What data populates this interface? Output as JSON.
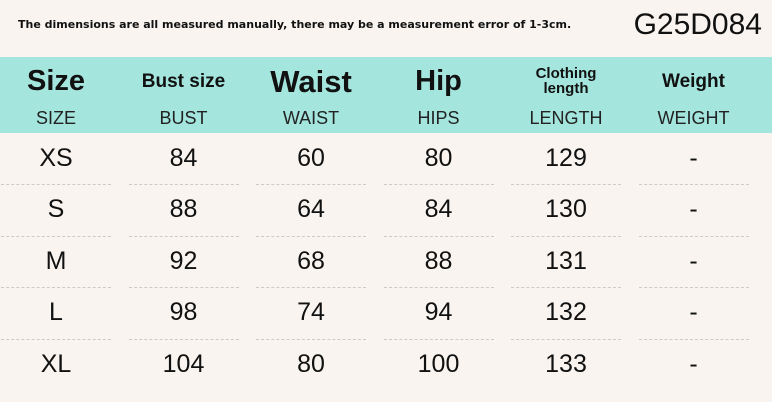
{
  "header": {
    "note": "The dimensions are all measured manually, there may be a measurement error of 1-3cm.",
    "code": "G25D084"
  },
  "table": {
    "columns": [
      {
        "title": "Size",
        "subtitle": "SIZE"
      },
      {
        "title": "Bust size",
        "subtitle": "BUST"
      },
      {
        "title": "Waist",
        "subtitle": "WAIST"
      },
      {
        "title": "Hip",
        "subtitle": "HIPS"
      },
      {
        "title": "Clothing length",
        "subtitle": "LENGTH"
      },
      {
        "title": "Weight",
        "subtitle": "WEIGHT"
      }
    ],
    "rows": [
      [
        "XS",
        84,
        60,
        80,
        129,
        "-"
      ],
      [
        "S",
        88,
        64,
        84,
        130,
        "-"
      ],
      [
        "M",
        92,
        68,
        88,
        131,
        "-"
      ],
      [
        "L",
        98,
        74,
        94,
        132,
        "-"
      ],
      [
        "XL",
        104,
        80,
        100,
        133,
        "-"
      ]
    ]
  }
}
